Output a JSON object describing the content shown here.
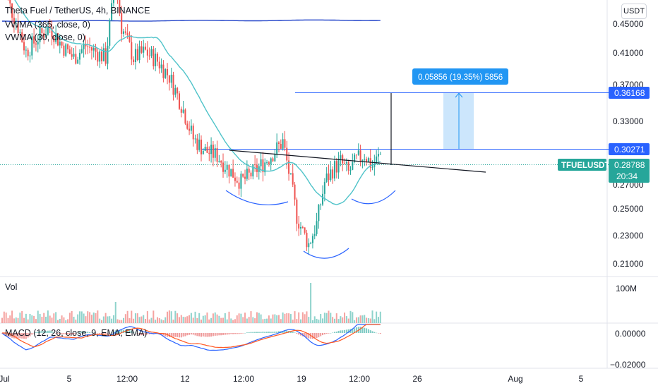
{
  "header": {
    "symbol_line": "Theta Fuel / TetherUS, 4h, BINANCE",
    "indicator_1": "VWMA (365, close, 0)",
    "indicator_2": "VWMA (30, close, 0)",
    "currency_button": "USDT",
    "volume_label": "Vol",
    "macd_label": "MACD (12, 26, close, 9, EMA, EMA)"
  },
  "price_axis": {
    "ticks": [
      "0.45000",
      "0.41000",
      "0.37000",
      "0.33000",
      "0.27000",
      "0.25000",
      "0.23000",
      "0.21000"
    ]
  },
  "volume_axis": {
    "ticks": [
      "100M"
    ]
  },
  "macd_axis": {
    "ticks": [
      "0.00000",
      "−0.02000"
    ]
  },
  "time_axis": {
    "ticks": [
      "Jul",
      "5",
      "12:00",
      "12",
      "12:00",
      "19",
      "12:00",
      "26",
      "Aug",
      "5"
    ]
  },
  "badges": {
    "target_price": "0.36168",
    "neckline_price": "0.30271",
    "symbol": "TFUELUSDT",
    "last_price": "0.28788",
    "countdown": "20:34"
  },
  "measure_label": "0.05856 (19.35%) 5856",
  "colors": {
    "up": "#26a69a",
    "down": "#ef5350",
    "vwma_long": "#1e40c8",
    "vwma_short": "#4fc3c9",
    "level_line": "#2962ff",
    "macd_line": "#2962ff",
    "signal_line": "#ff5722"
  },
  "chart_data": {
    "type": "candlestick",
    "title": "Theta Fuel / TetherUS, 4h, BINANCE",
    "y_range": [
      0.21,
      0.45
    ],
    "key_levels": {
      "target": 0.36168,
      "neckline_breakout": 0.30271,
      "last": 0.28788
    },
    "measured_move": {
      "change": 0.05856,
      "percent": 19.35,
      "ticks": 5856
    },
    "pattern": "inverse head and shoulders",
    "series": [
      {
        "name": "VWMA (365, close, 0)",
        "type": "line"
      },
      {
        "name": "VWMA (30, close, 0)",
        "type": "line"
      }
    ]
  }
}
